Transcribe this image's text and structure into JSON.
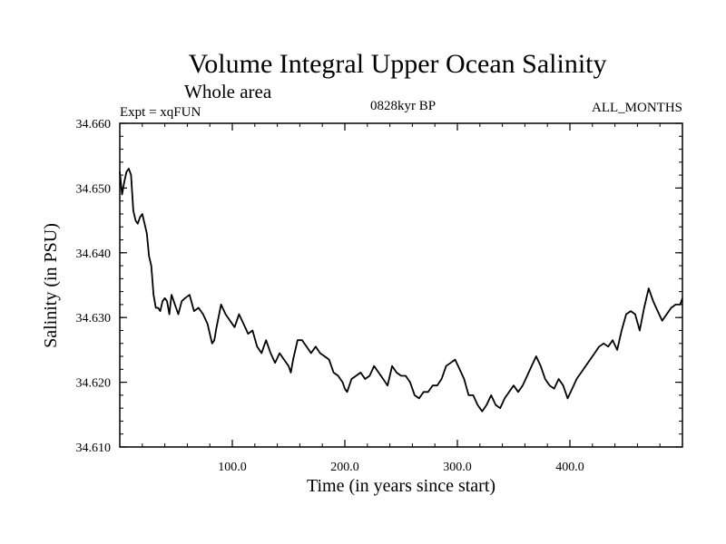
{
  "chart_data": {
    "type": "line",
    "title": "Volume Integral Upper Ocean Salinity",
    "subtitle": "Whole area",
    "left_label": "Expt = xqFUN",
    "center_label": "0828kyr BP",
    "right_label": "ALL_MONTHS",
    "xlabel": "Time (in years since start)",
    "ylabel": "Salinity (in PSU)",
    "xlim": [
      0,
      500
    ],
    "ylim": [
      34.61,
      34.66
    ],
    "x_ticks": [
      100,
      200,
      300,
      400
    ],
    "x_tick_labels": [
      "100.0",
      "200.0",
      "300.0",
      "400.0"
    ],
    "y_ticks": [
      34.61,
      34.62,
      34.63,
      34.64,
      34.65,
      34.66
    ],
    "y_tick_labels": [
      "34.610",
      "34.620",
      "34.630",
      "34.640",
      "34.650",
      "34.660"
    ],
    "grid": false,
    "line_color": "#000000",
    "series": [
      {
        "name": "salinity",
        "x": [
          0,
          2,
          4,
          6,
          8,
          10,
          12,
          14,
          16,
          18,
          20,
          22,
          24,
          26,
          28,
          30,
          32,
          34,
          36,
          38,
          40,
          42,
          44,
          46,
          48,
          50,
          52,
          55,
          58,
          62,
          66,
          70,
          74,
          78,
          82,
          84,
          86,
          90,
          94,
          98,
          102,
          106,
          110,
          114,
          118,
          122,
          126,
          130,
          134,
          138,
          142,
          146,
          150,
          152,
          154,
          158,
          162,
          166,
          170,
          174,
          178,
          182,
          186,
          190,
          194,
          198,
          200,
          202,
          206,
          210,
          214,
          218,
          222,
          226,
          230,
          234,
          238,
          242,
          246,
          250,
          254,
          258,
          262,
          266,
          270,
          274,
          278,
          282,
          286,
          290,
          294,
          298,
          302,
          306,
          310,
          314,
          318,
          322,
          326,
          330,
          334,
          338,
          342,
          346,
          350,
          354,
          358,
          362,
          366,
          370,
          374,
          378,
          382,
          386,
          390,
          394,
          398,
          402,
          406,
          410,
          414,
          418,
          422,
          426,
          430,
          434,
          438,
          442,
          446,
          450,
          454,
          458,
          462,
          466,
          470,
          474,
          478,
          482,
          486,
          490,
          494,
          498,
          500
        ],
        "values": [
          34.6525,
          34.649,
          34.651,
          34.6525,
          34.653,
          34.652,
          34.6465,
          34.645,
          34.6445,
          34.6455,
          34.646,
          34.6445,
          34.643,
          34.6395,
          34.638,
          34.6335,
          34.6315,
          34.6315,
          34.631,
          34.6325,
          34.633,
          34.6325,
          34.6305,
          34.6335,
          34.6325,
          34.6315,
          34.6305,
          34.6325,
          34.633,
          34.6335,
          34.631,
          34.6315,
          34.6305,
          34.629,
          34.626,
          34.6265,
          34.6285,
          34.632,
          34.6305,
          34.6295,
          34.6285,
          34.6305,
          34.629,
          34.6275,
          34.628,
          34.6255,
          34.6245,
          34.6265,
          34.6245,
          34.623,
          34.6245,
          34.6235,
          34.6225,
          34.6215,
          34.6235,
          34.6265,
          34.6265,
          34.6255,
          34.6245,
          34.6255,
          34.6245,
          34.624,
          34.6235,
          34.6215,
          34.621,
          34.62,
          34.619,
          34.6185,
          34.6205,
          34.621,
          34.6215,
          34.6205,
          34.621,
          34.6225,
          34.6215,
          34.6205,
          34.6195,
          34.6225,
          34.6215,
          34.621,
          34.621,
          34.62,
          34.618,
          34.6175,
          34.6185,
          34.6185,
          34.6195,
          34.6195,
          34.6205,
          34.6225,
          34.623,
          34.6235,
          34.622,
          34.6205,
          34.618,
          34.618,
          34.6165,
          34.6155,
          34.6165,
          34.618,
          34.6165,
          34.616,
          34.6175,
          34.6185,
          34.6195,
          34.6185,
          34.6195,
          34.621,
          34.6225,
          34.624,
          34.6225,
          34.6205,
          34.6195,
          34.619,
          34.6205,
          34.6195,
          34.6175,
          34.619,
          34.6205,
          34.6215,
          34.6225,
          34.6235,
          34.6245,
          34.6255,
          34.626,
          34.6255,
          34.6265,
          34.625,
          34.628,
          34.6305,
          34.631,
          34.6305,
          34.628,
          34.6315,
          34.6345,
          34.6325,
          34.631,
          34.6295,
          34.6305,
          34.6315,
          34.632,
          34.632,
          34.633
        ]
      }
    ]
  }
}
